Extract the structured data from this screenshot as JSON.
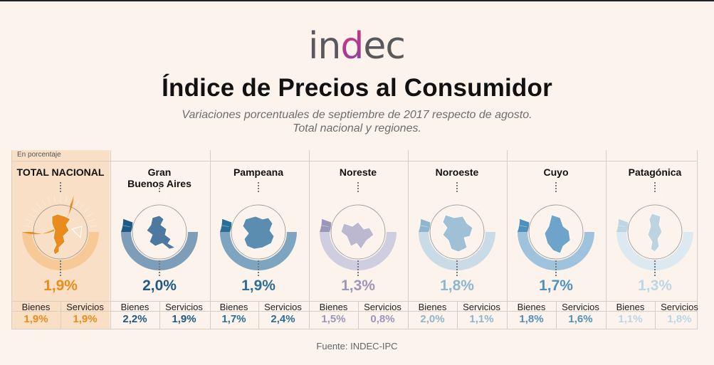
{
  "header": {
    "logo_text": "indec",
    "title": "Índice de Precios al Consumidor",
    "subtitle_line1": "Variaciones porcentuales de septiembre de 2017 respecto de agosto.",
    "subtitle_line2": "Total nacional y regiones."
  },
  "unit_label": "En porcentaje",
  "labels": {
    "bienes": "Bienes",
    "servicios": "Servicios"
  },
  "colors": {
    "national": "#e88d1c",
    "logo_grey": "#59595b",
    "logo_pink": "#d62f7f"
  },
  "regions": [
    {
      "id": "total",
      "name": "TOTAL NACIONAL",
      "name2": "",
      "total": "1,9%",
      "bienes": "1,9%",
      "servicios": "1,9%",
      "color": "#e88d1c",
      "light": "#f6c997",
      "fill": "#e98c1d",
      "map": "argentina-map",
      "level": 0.61
    },
    {
      "id": "gba",
      "name": "Gran",
      "name2": "Buenos Aires",
      "total": "2,0%",
      "bienes": "2,2%",
      "servicios": "1,9%",
      "color": "#1f5a86",
      "light": "#7d9db8",
      "fill": "#4d78a0",
      "map": "gba-map",
      "level": 0.11
    },
    {
      "id": "pampeana",
      "name": "Pampeana",
      "name2": "",
      "total": "1,9%",
      "bienes": "1,7%",
      "servicios": "2,4%",
      "color": "#2a6f98",
      "light": "#7ea5c0",
      "fill": "#5a8db0",
      "map": "pampeana-map",
      "level": 0.11
    },
    {
      "id": "noreste",
      "name": "Noreste",
      "name2": "",
      "total": "1,3%",
      "bienes": "1,5%",
      "servicios": "0,8%",
      "color": "#9b97b8",
      "light": "#cfcde0",
      "fill": "#bbb8cf",
      "map": "noreste-map",
      "level": 0.11
    },
    {
      "id": "noroeste",
      "name": "Noroeste",
      "name2": "",
      "total": "1,8%",
      "bienes": "2,0%",
      "servicios": "1,1%",
      "color": "#8fb6cf",
      "light": "#c8dbe7",
      "fill": "#9fc0d6",
      "map": "noroeste-map",
      "level": 0.11
    },
    {
      "id": "cuyo",
      "name": "Cuyo",
      "name2": "",
      "total": "1,7%",
      "bienes": "1,8%",
      "servicios": "1,6%",
      "color": "#4f91bd",
      "light": "#9fc3dc",
      "fill": "#6ea4c9",
      "map": "cuyo-map",
      "level": 0.11
    },
    {
      "id": "patagonica",
      "name": "Patagónica",
      "name2": "",
      "total": "1,3%",
      "bienes": "1,1%",
      "servicios": "1,8%",
      "color": "#bcd6e4",
      "light": "#dde9f0",
      "fill": "#bcd3e0",
      "map": "patagonica-map",
      "level": 0.11
    }
  ],
  "source": "Fuente: INDEC-IPC"
}
